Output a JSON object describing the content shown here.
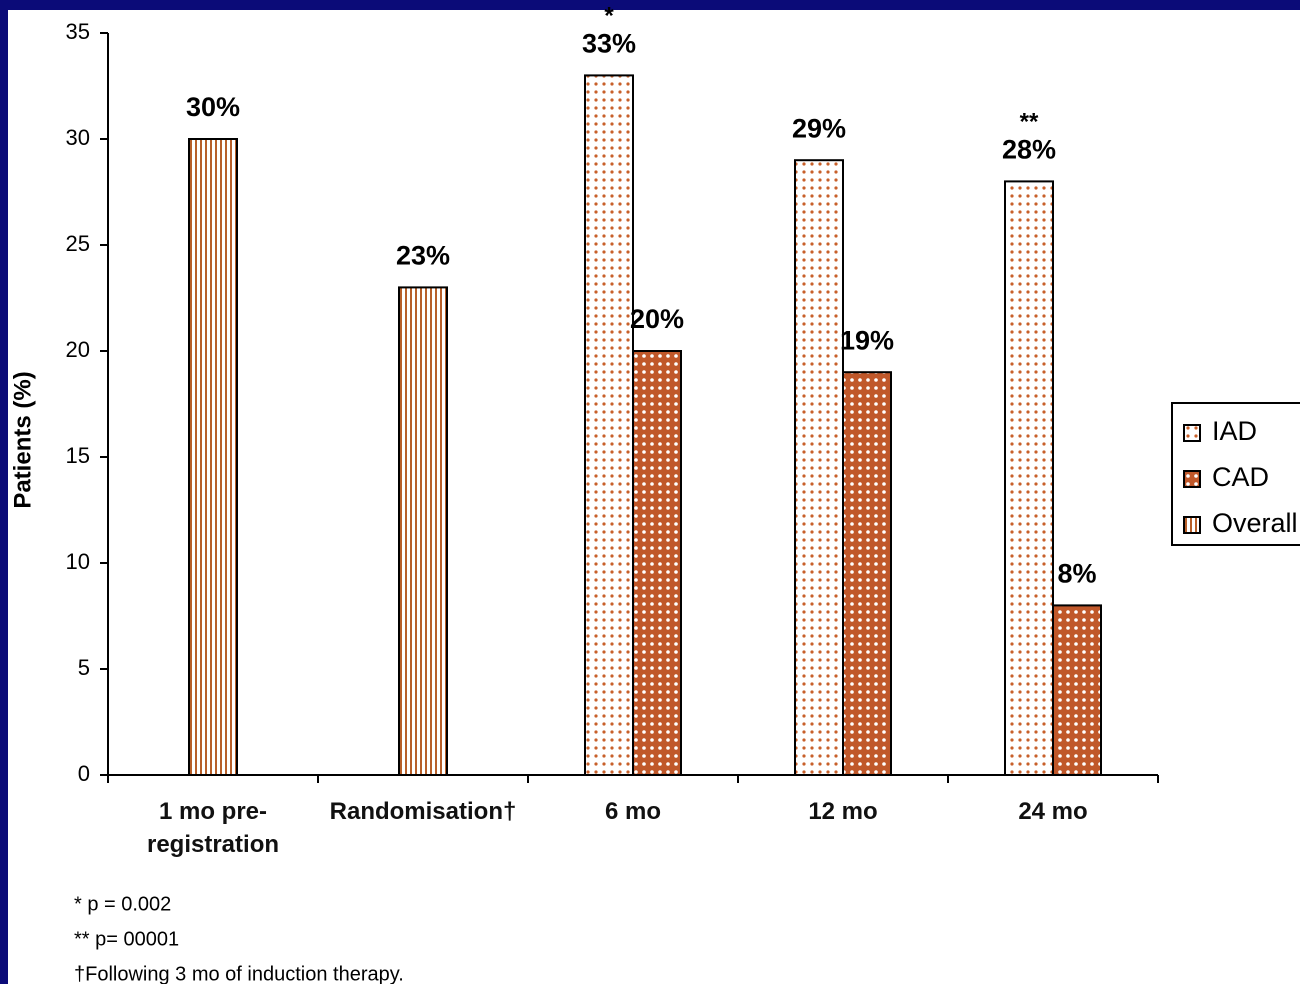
{
  "chart_data": {
    "type": "bar",
    "y_label": "Patients (%)",
    "categories": [
      "1 mo pre-registration",
      "Randomisation†",
      "6 mo",
      "12 mo",
      "24 mo"
    ],
    "series": [
      {
        "name": "IAD",
        "color": "#c8602a",
        "pattern": "light-dots",
        "values": [
          null,
          null,
          33,
          29,
          28
        ],
        "value_labels": [
          null,
          null,
          "33%",
          "29%",
          "28%"
        ],
        "significance": [
          null,
          null,
          "*",
          null,
          "**"
        ]
      },
      {
        "name": "CAD",
        "color": "#c0582a",
        "pattern": "dark-dots",
        "values": [
          null,
          null,
          20,
          19,
          8
        ],
        "value_labels": [
          null,
          null,
          "20%",
          "19%",
          "8%"
        ]
      },
      {
        "name": "Overall",
        "color": "#b8602a",
        "pattern": "stripes",
        "values": [
          30,
          23,
          null,
          null,
          null
        ],
        "value_labels": [
          "30%",
          "23%",
          null,
          null,
          null
        ]
      }
    ],
    "ylim": [
      0,
      35
    ],
    "yticks": [
      0,
      5,
      10,
      15,
      20,
      25,
      30,
      35
    ],
    "grid": false,
    "legend": "right",
    "footnotes": [
      "* p = 0.002",
      "** p= 00001",
      "†Following 3 mo of induction therapy."
    ]
  }
}
